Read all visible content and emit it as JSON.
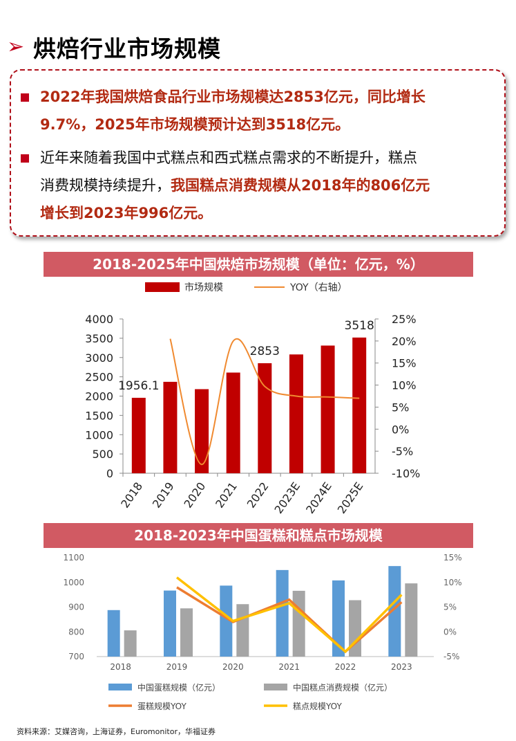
{
  "page": {
    "title": "烘焙行业市场规模",
    "bullets": [
      {
        "parts": [
          {
            "text": "2022年我国烘焙食品行业市场规模达2853亿元，同比增长",
            "style": "red"
          }
        ]
      },
      {
        "parts": []
      }
    ],
    "bullet1_line1": "2022年我国烘焙食品行业市场规模达2853亿元，同比增长",
    "bullet1_line2": "9.7%，2025年市场规模预计达到3518亿元。",
    "bullet2_line1": "近年来随着我国中式糕点和西式糕点需求的不断提升，糕点",
    "bullet2_line2_a": "消费规模持续提升，",
    "bullet2_line2_b": "我国糕点消费规模从2018年的806亿元",
    "bullet2_line3": "增长到2023年996亿元。",
    "source": "资料来源：艾媒咨询，上海证券，Euromonitor，华福证券",
    "accent": "#c0001a"
  },
  "chart_data": [
    {
      "type": "bar",
      "title": "2018-2025年中国烘焙市场规模（单位：亿元，%）",
      "categories": [
        "2018",
        "2019",
        "2020",
        "2021",
        "2022",
        "2023E",
        "2024E",
        "2025E"
      ],
      "series": [
        {
          "name": "市场规模",
          "type": "bar",
          "axis": "left",
          "color": "#c00000",
          "values": [
            1956.1,
            2370,
            2180,
            2610,
            2853,
            3080,
            3310,
            3518
          ]
        },
        {
          "name": "YOY（右轴）",
          "type": "line",
          "axis": "right",
          "color": "#f08a30",
          "values": [
            null,
            20.5,
            -8.0,
            20.0,
            9.7,
            7.5,
            7.3,
            7.0
          ]
        }
      ],
      "data_labels": [
        {
          "category": "2018",
          "text": "1956.1"
        },
        {
          "category": "2022",
          "text": "2853"
        },
        {
          "category": "2025E",
          "text": "3518"
        }
      ],
      "ylim": [
        0,
        4000
      ],
      "yticks": [
        "0",
        "500",
        "1000",
        "1500",
        "2000",
        "2500",
        "3000",
        "3500",
        "4000"
      ],
      "y2lim": [
        -10,
        25
      ],
      "y2ticks": [
        "-10%",
        "-5%",
        "0%",
        "5%",
        "10%",
        "15%",
        "20%",
        "25%"
      ],
      "legend_position": "top"
    },
    {
      "type": "bar",
      "title": "2018-2023年中国蛋糕和糕点市场规模",
      "categories": [
        "2018",
        "2019",
        "2020",
        "2021",
        "2022",
        "2023"
      ],
      "series": [
        {
          "name": "中国蛋糕规模（亿元）",
          "type": "bar",
          "axis": "left",
          "color": "#5b9bd5",
          "values": [
            888,
            967,
            987,
            1050,
            1008,
            1066
          ]
        },
        {
          "name": "中国糕点消费规模（亿元）",
          "type": "bar",
          "axis": "left",
          "color": "#a5a5a5",
          "values": [
            806,
            895,
            912,
            966,
            928,
            996
          ]
        },
        {
          "name": "蛋糕规模YOY",
          "type": "line",
          "axis": "right",
          "color": "#ed7d31",
          "values": [
            null,
            9.0,
            2.0,
            6.5,
            -4.0,
            6.0
          ]
        },
        {
          "name": "糕点规模YOY",
          "type": "line",
          "axis": "right",
          "color": "#ffc000",
          "values": [
            null,
            11.0,
            2.2,
            5.8,
            -4.0,
            7.5
          ]
        }
      ],
      "ylim": [
        700,
        1100
      ],
      "yticks": [
        "700",
        "800",
        "900",
        "1000",
        "1100"
      ],
      "y2lim": [
        -5,
        15
      ],
      "y2ticks": [
        "-5%",
        "0%",
        "5%",
        "10%",
        "15%"
      ],
      "legend_position": "bottom"
    }
  ]
}
